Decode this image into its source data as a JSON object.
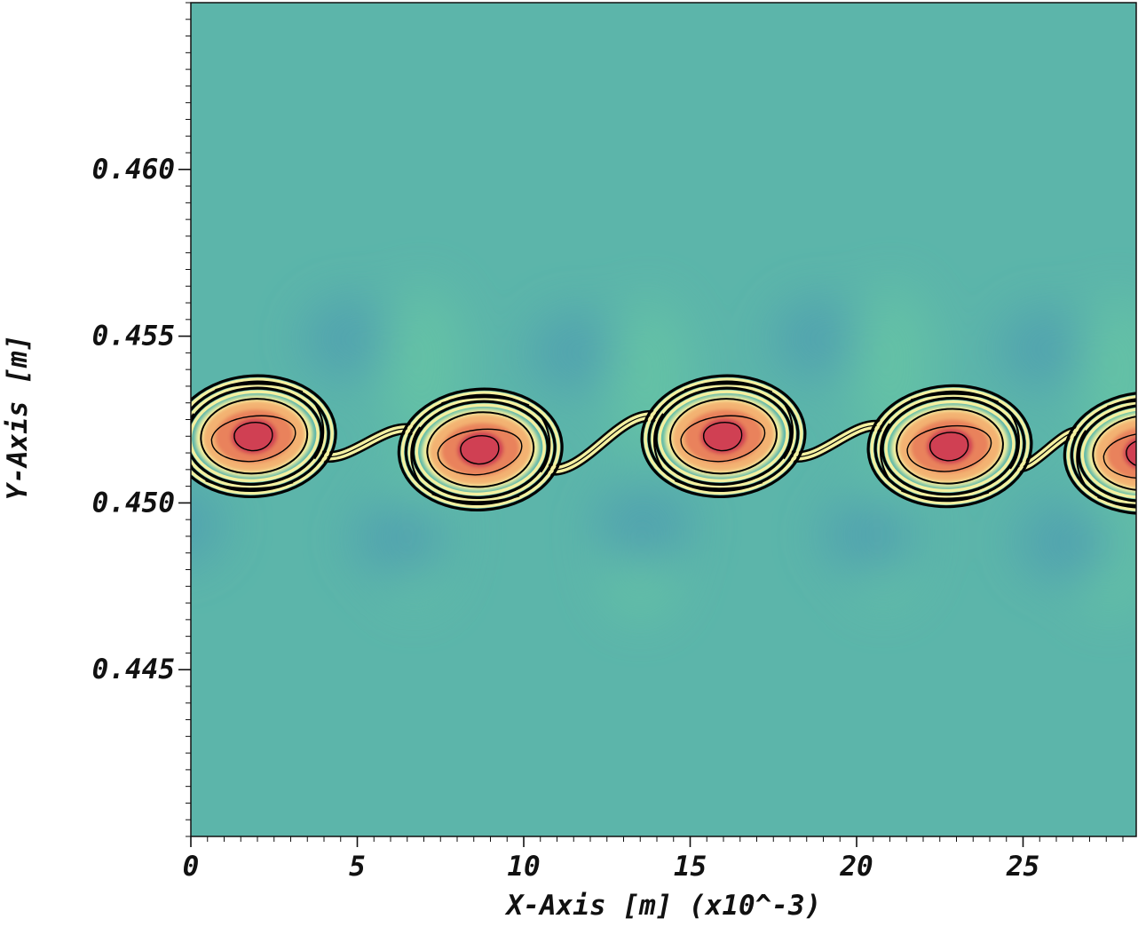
{
  "chart_data": {
    "type": "heatmap",
    "title": "",
    "xlabel": "X-Axis [m] (x10^-3)",
    "ylabel": "Y-Axis [m]",
    "xlim": [
      0,
      28.4
    ],
    "ylim": [
      0.44,
      0.465
    ],
    "x_ticks": [
      {
        "value": 0,
        "label": "0"
      },
      {
        "value": 5,
        "label": "5"
      },
      {
        "value": 10,
        "label": "10"
      },
      {
        "value": 15,
        "label": "15"
      },
      {
        "value": 20,
        "label": "20"
      },
      {
        "value": 25,
        "label": "25"
      }
    ],
    "y_ticks": [
      {
        "value": 0.445,
        "label": "0.445"
      },
      {
        "value": 0.45,
        "label": "0.450"
      },
      {
        "value": 0.455,
        "label": "0.455"
      },
      {
        "value": 0.46,
        "label": "0.460"
      }
    ],
    "background_colors": [
      "#5cb5aa",
      "#4f9fb0",
      "#66c4a5"
    ],
    "vortex_colors": [
      "#f4f0a0",
      "#f3b272",
      "#e9825c",
      "#d03f52"
    ],
    "contour_color": "#000000",
    "vortices": [
      {
        "x": 1.9,
        "y": 0.452
      },
      {
        "x": 8.7,
        "y": 0.4516
      },
      {
        "x": 16.0,
        "y": 0.452
      },
      {
        "x": 22.8,
        "y": 0.4517
      },
      {
        "x": 28.7,
        "y": 0.4515
      }
    ]
  }
}
